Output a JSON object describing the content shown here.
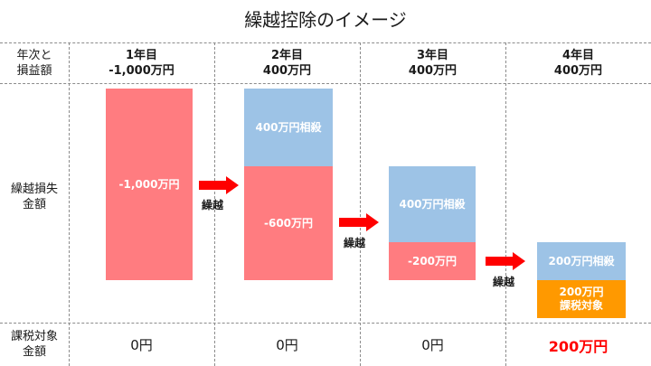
{
  "title": "繰越控除のイメージ",
  "row_labels": {
    "header": [
      "年次と",
      "損益額"
    ],
    "loss": [
      "繰越損失",
      "金額"
    ],
    "taxable": [
      "課税対象",
      "金額"
    ]
  },
  "years": [
    {
      "year": "1年目",
      "amount": "-1,000万円"
    },
    {
      "year": "2年目",
      "amount": "400万円"
    },
    {
      "year": "3年目",
      "amount": "400万円"
    },
    {
      "year": "4年目",
      "amount": "400万円"
    }
  ],
  "bars": {
    "y1_loss": "-1,000万円",
    "y2_offset": "400万円相殺",
    "y2_loss": "-600万円",
    "y3_offset": "400万円相殺",
    "y3_loss": "-200万円",
    "y4_offset": "200万円相殺",
    "y4_taxable_line1": "200万円",
    "y4_taxable_line2": "課税対象"
  },
  "carry_label": "繰越",
  "taxable_values": [
    "0円",
    "0円",
    "0円",
    "200万円"
  ],
  "colors": {
    "loss": "#ff7c80",
    "offset": "#9dc3e6",
    "taxable": "#ff9900",
    "arrow": "#ff0000",
    "highlight": "#ff0000"
  }
}
